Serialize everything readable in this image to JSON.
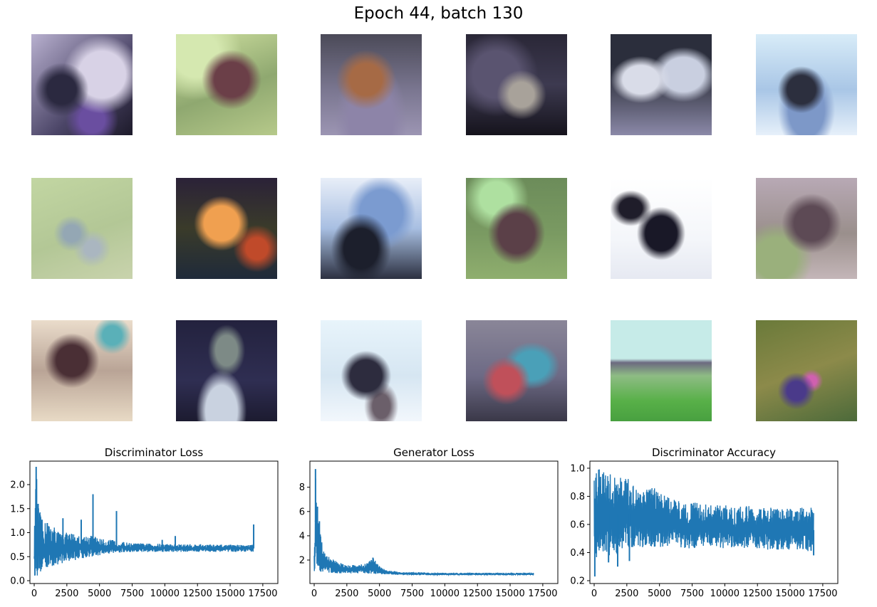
{
  "figure_title": "Epoch 44, batch 130",
  "samples_grid": {
    "rows": 3,
    "cols": 6
  },
  "chart_data": [
    {
      "type": "line",
      "title": "Discriminator Loss",
      "xlabel": "",
      "ylabel": "",
      "xlim": [
        0,
        17500
      ],
      "ylim": [
        0.0,
        2.4
      ],
      "xticks": [
        0,
        2500,
        5000,
        7500,
        10000,
        12500,
        15000,
        17500
      ],
      "yticks": [
        0.0,
        0.5,
        1.0,
        1.5,
        2.0
      ],
      "ytick_labels": [
        "0.0",
        "0.5",
        "1.0",
        "1.5",
        "2.0"
      ],
      "grid": false,
      "color": "#1f77b4",
      "x": [
        0,
        150,
        300,
        600,
        1000,
        1500,
        2000,
        2500,
        3000,
        3500,
        4000,
        4500,
        5000,
        5500,
        6000,
        6500,
        7000,
        7500,
        8000,
        9000,
        10000,
        11000,
        12000,
        13000,
        14000,
        15000,
        16000,
        16800
      ],
      "upper": [
        0.9,
        2.37,
        1.6,
        1.27,
        1.2,
        1.15,
        1.0,
        1.0,
        1.0,
        0.95,
        0.95,
        0.95,
        0.88,
        0.85,
        0.85,
        0.82,
        0.8,
        0.78,
        0.78,
        0.77,
        0.77,
        0.76,
        0.76,
        0.76,
        0.75,
        0.75,
        0.75,
        0.75
      ],
      "lower": [
        0.1,
        0.05,
        0.1,
        0.2,
        0.25,
        0.3,
        0.35,
        0.4,
        0.42,
        0.45,
        0.48,
        0.5,
        0.52,
        0.55,
        0.57,
        0.58,
        0.58,
        0.58,
        0.59,
        0.6,
        0.6,
        0.6,
        0.6,
        0.6,
        0.6,
        0.6,
        0.6,
        0.6
      ],
      "spikes": [
        [
          150,
          2.37
        ],
        [
          300,
          1.6
        ],
        [
          600,
          1.27
        ],
        [
          1000,
          1.2
        ],
        [
          2200,
          1.3
        ],
        [
          3600,
          1.27
        ],
        [
          4500,
          1.8
        ],
        [
          6300,
          1.45
        ],
        [
          9800,
          0.85
        ],
        [
          10800,
          0.93
        ],
        [
          16800,
          1.17
        ]
      ]
    },
    {
      "type": "line",
      "title": "Generator Loss",
      "xlabel": "",
      "ylabel": "",
      "xlim": [
        0,
        17500
      ],
      "ylim": [
        0.3,
        9.8
      ],
      "xticks": [
        0,
        2500,
        5000,
        7500,
        10000,
        12500,
        15000,
        17500
      ],
      "yticks": [
        2,
        4,
        6,
        8
      ],
      "ytick_labels": [
        "2",
        "4",
        "6",
        "8"
      ],
      "grid": false,
      "color": "#1f77b4",
      "x": [
        0,
        100,
        200,
        400,
        700,
        1000,
        1500,
        2000,
        2500,
        3000,
        4000,
        4500,
        5000,
        5500,
        6000,
        7000,
        8000,
        9000,
        10000,
        12000,
        14000,
        16000,
        16800
      ],
      "upper": [
        2.5,
        9.5,
        6.5,
        4.5,
        3.0,
        2.5,
        2.0,
        1.8,
        1.6,
        1.6,
        1.7,
        2.2,
        1.5,
        1.2,
        1.1,
        1.0,
        1.0,
        0.95,
        0.95,
        0.95,
        0.95,
        0.95,
        0.95
      ],
      "lower": [
        0.5,
        0.8,
        1.0,
        1.0,
        1.0,
        0.95,
        0.9,
        0.9,
        0.9,
        0.9,
        0.9,
        0.85,
        0.85,
        0.8,
        0.8,
        0.75,
        0.75,
        0.75,
        0.75,
        0.75,
        0.75,
        0.75,
        0.75
      ],
      "spikes": [
        [
          100,
          9.5
        ],
        [
          250,
          6.4
        ],
        [
          400,
          5.2
        ],
        [
          4500,
          2.2
        ]
      ]
    },
    {
      "type": "line",
      "title": "Discriminator Accuracy",
      "xlabel": "",
      "ylabel": "",
      "xlim": [
        0,
        17500
      ],
      "ylim": [
        0.2,
        1.02
      ],
      "xticks": [
        0,
        2500,
        5000,
        7500,
        10000,
        12500,
        15000,
        17500
      ],
      "yticks": [
        0.2,
        0.4,
        0.6,
        0.8,
        1.0
      ],
      "ytick_labels": [
        "0.2",
        "0.4",
        "0.6",
        "0.8",
        "1.0"
      ],
      "grid": false,
      "color": "#1f77b4",
      "x": [
        0,
        200,
        500,
        1000,
        1500,
        2000,
        2500,
        3000,
        3500,
        4000,
        4500,
        5000,
        5500,
        6000,
        7000,
        8000,
        9000,
        10000,
        11000,
        12000,
        13000,
        14000,
        15000,
        16000,
        16800
      ],
      "upper": [
        1.0,
        1.0,
        0.99,
        0.98,
        0.96,
        0.95,
        0.93,
        0.9,
        0.88,
        0.87,
        0.86,
        0.85,
        0.8,
        0.78,
        0.77,
        0.75,
        0.74,
        0.74,
        0.73,
        0.73,
        0.72,
        0.72,
        0.72,
        0.72,
        0.72
      ],
      "lower": [
        0.25,
        0.35,
        0.38,
        0.38,
        0.36,
        0.4,
        0.42,
        0.43,
        0.43,
        0.44,
        0.44,
        0.44,
        0.44,
        0.44,
        0.43,
        0.43,
        0.43,
        0.43,
        0.43,
        0.43,
        0.42,
        0.42,
        0.42,
        0.42,
        0.4
      ],
      "spikes": [
        [
          50,
          0.23
        ],
        [
          1100,
          0.33
        ],
        [
          1800,
          0.3
        ],
        [
          2700,
          0.34
        ],
        [
          16800,
          0.38
        ]
      ]
    }
  ]
}
